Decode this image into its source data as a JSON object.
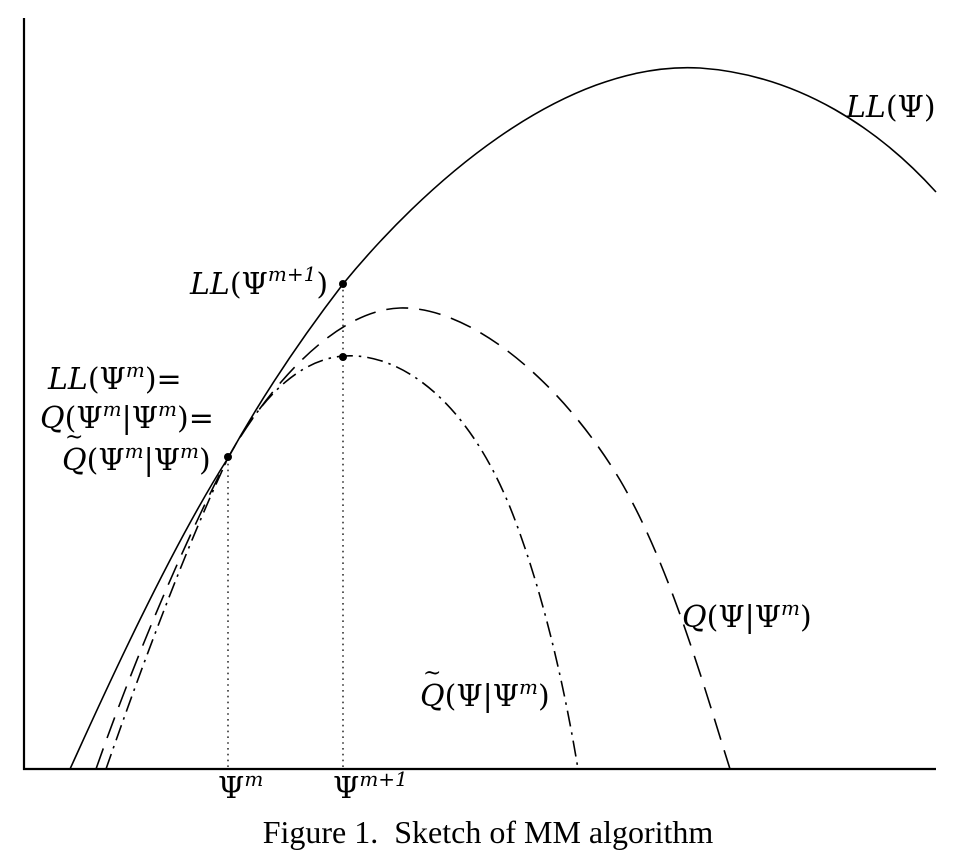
{
  "figure": {
    "caption": "Figure 1.  Sketch of MM algorithm",
    "curves": {
      "ll": "LL(Ψ)",
      "q": "Q(Ψ|Ψ^m)",
      "qtilde": "Q̃(Ψ|Ψ^m)"
    },
    "point_labels": {
      "ll_next": "LL(Ψ^{m+1})",
      "equality_line1": "LL(Ψ^m)=",
      "equality_line2": "Q(Ψ^m|Ψ^m)=",
      "equality_line3": "Q̃(Ψ^m|Ψ^m)"
    },
    "x_ticks": {
      "psi_m": "Ψ^m",
      "psi_m1": "Ψ^{m+1}"
    }
  }
}
